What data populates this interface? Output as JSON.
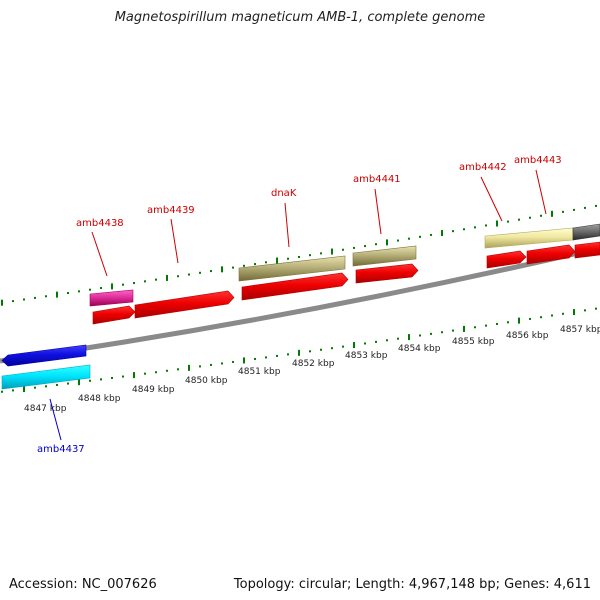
{
  "title": "Magnetospirillum magneticum AMB-1, complete genome",
  "footer": {
    "accession": "Accession: NC_007626",
    "summary": "Topology: circular; Length: 4,967,148 bp; Genes: 4,611"
  },
  "colors": {
    "forward_label": "#cc0000",
    "reverse_label": "#0000cc",
    "tick": "#007a00",
    "backbone": "#8a8a8a"
  },
  "scale_labels": [
    "4847 kbp",
    "4848 kbp",
    "4849 kbp",
    "4850 kbp",
    "4851 kbp",
    "4852 kbp",
    "4853 kbp",
    "4854 kbp",
    "4855 kbp",
    "4856 kbp",
    "4857 kbp"
  ],
  "gene_labels": [
    {
      "text": "amb4437",
      "strand": "reverse"
    },
    {
      "text": "amb4438",
      "strand": "forward"
    },
    {
      "text": "amb4439",
      "strand": "forward"
    },
    {
      "text": "dnaK",
      "strand": "forward"
    },
    {
      "text": "amb4441",
      "strand": "forward"
    },
    {
      "text": "amb4442",
      "strand": "forward"
    },
    {
      "text": "amb4443",
      "strand": "forward"
    }
  ],
  "features": [
    {
      "name": "amb4437-cds",
      "color": "#00e5ff"
    },
    {
      "name": "amb4437-gene",
      "color": "#1010e0"
    },
    {
      "name": "amb4438-gene",
      "color": "#e0309a"
    },
    {
      "name": "amb4438-cds",
      "color": "#ee0000"
    },
    {
      "name": "amb4439-cds",
      "color": "#ee0000"
    },
    {
      "name": "dnaK-gene",
      "color": "#b8b07a"
    },
    {
      "name": "dnaK-cds",
      "color": "#ee0000"
    },
    {
      "name": "amb4441-gene",
      "color": "#b8b07a"
    },
    {
      "name": "amb4441-cds",
      "color": "#ee0000"
    },
    {
      "name": "amb4442-gene",
      "color": "#f0e8a0"
    },
    {
      "name": "amb4442-cds",
      "color": "#ee0000"
    },
    {
      "name": "amb4443-cds",
      "color": "#ee0000"
    },
    {
      "name": "next-gene",
      "color": "#6e6e6e"
    },
    {
      "name": "next-cds",
      "color": "#ee0000"
    }
  ]
}
